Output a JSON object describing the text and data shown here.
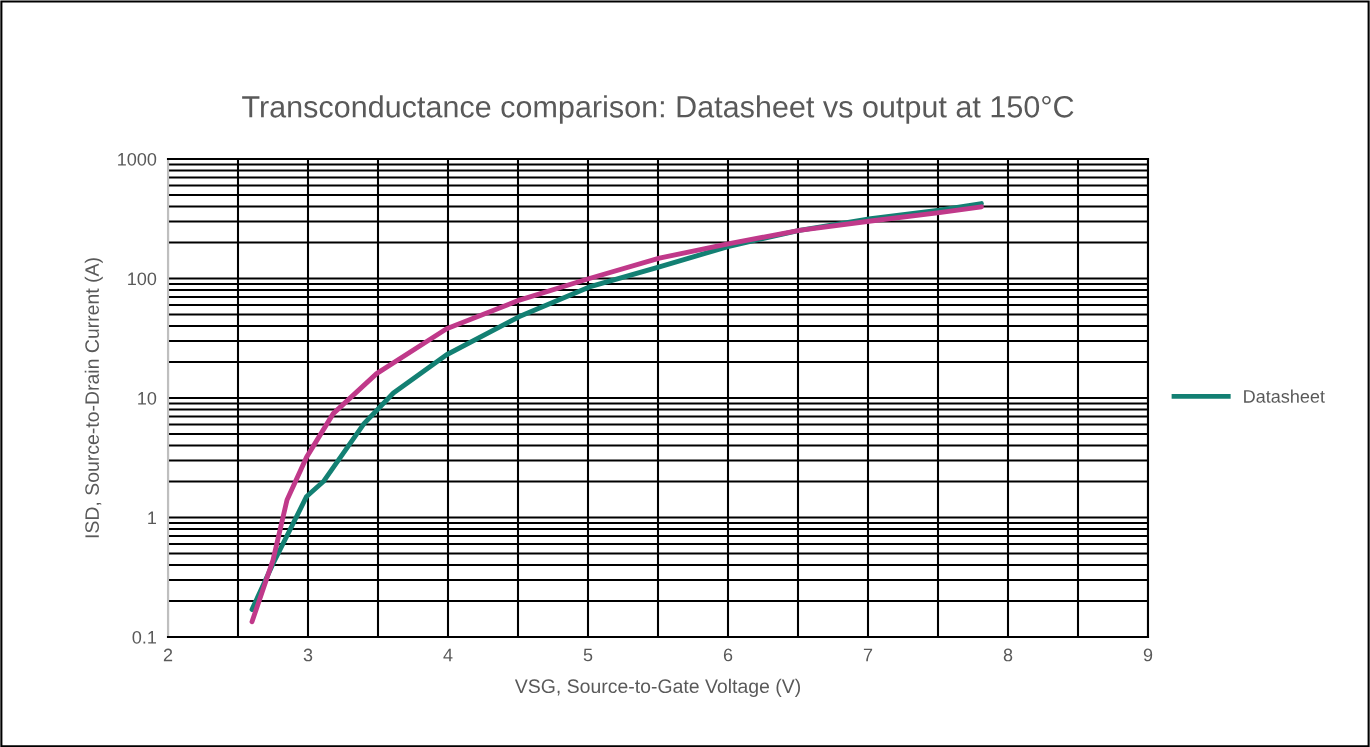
{
  "chart_data": {
    "type": "line",
    "title": "Transconductance comparison: Datasheet vs output at 150°C",
    "xlabel": "VSG, Source-to-Gate Voltage (V)",
    "ylabel": "ISD, Source-to-Drain Current (A)",
    "log": "y",
    "grid": true,
    "legend": "right",
    "marker": "none",
    "line_style": "solid",
    "xlim": [
      2,
      9
    ],
    "xticks": [
      2,
      {
        "value": 2.5,
        "label": null
      },
      3,
      {
        "value": 3.5,
        "label": null
      },
      4,
      {
        "value": 4.5,
        "label": null
      },
      5,
      {
        "value": 5.5,
        "label": null
      },
      6,
      {
        "value": 6.5,
        "label": null
      },
      7,
      {
        "value": 7.5,
        "label": null
      },
      8,
      {
        "value": 8.5,
        "label": null
      },
      9
    ],
    "ylim": [
      0.1,
      1000
    ],
    "yticks": [
      0.1,
      1,
      10,
      100,
      1000
    ],
    "series": [
      {
        "name": "Datasheet",
        "color": "#138073",
        "x": [
          2.6,
          2.75,
          2.99,
          3.11,
          3.4,
          3.61,
          3.99,
          4.51,
          5.01,
          5.51,
          6.0,
          6.51,
          7.02,
          7.51,
          7.81
        ],
        "values": [
          0.17,
          0.41,
          1.5,
          2.0,
          6.1,
          11,
          23,
          48,
          85,
          125,
          185,
          253,
          317,
          373,
          424
        ]
      },
      {
        "color": "#c0398a",
        "x": [
          2.6,
          2.75,
          2.85,
          2.99,
          3.18,
          3.49,
          3.99,
          4.51,
          5.01,
          5.51,
          6.0,
          6.51,
          7.02,
          7.51,
          7.81
        ],
        "values": [
          0.134,
          0.44,
          1.4,
          3.2,
          7.4,
          16,
          38,
          66,
          100,
          148,
          195,
          253,
          303,
          356,
          398
        ]
      }
    ]
  }
}
